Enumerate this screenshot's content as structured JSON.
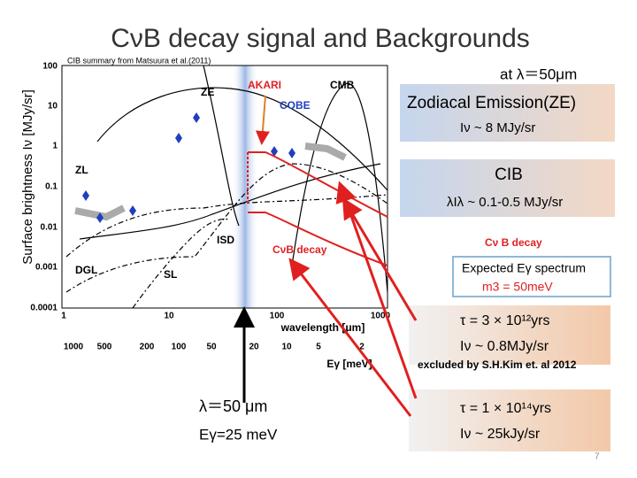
{
  "title": "CνB decay signal and Backgrounds",
  "plot": {
    "note": "CIB summary from Matsuura et al.(2011)",
    "y_label": "Surface brightness Iν [MJy/sr]",
    "y_ticks": [
      "100",
      "10",
      "1",
      "0.1",
      "0.01",
      "0.001",
      "0.0001"
    ],
    "x_ticks": [
      "1",
      "10",
      "100",
      "1000"
    ],
    "x2_ticks": [
      "1000",
      "500",
      "200",
      "100",
      "50",
      "20",
      "10",
      "5",
      "2"
    ],
    "x_label": "wavelength [μm]",
    "x2_label": "Eγ [meV]",
    "labels": [
      "ZE",
      "AKARI",
      "CMB",
      "COBE",
      "ZL",
      "ISD",
      "CνB decay",
      "DGL",
      "SL"
    ]
  },
  "annotation": {
    "wavelength": "λ＝50 μm",
    "energy": "Eγ=25 meV"
  },
  "panel": {
    "heading": "at λ＝50μm",
    "ze": {
      "title": "Zodiacal Emission(ZE)",
      "value": "Iν ~ 8 MJy/sr"
    },
    "cib": {
      "title": "CIB",
      "value": "λIλ ~ 0.1-0.5 MJy/sr"
    },
    "cnb": {
      "title": "Cν B decay",
      "spectrum": "Expected Eγ spectrum",
      "mass": "m3 = 50meV",
      "case1": {
        "tau": "τ = 3 × 10¹²yrs",
        "intensity": "Iν ~ 0.8MJy/sr",
        "note": "excluded by S.H.Kim et. al 2012"
      },
      "case2": {
        "tau": "τ = 1 × 10¹⁴yrs",
        "intensity": "Iν ~ 25kJy/sr"
      }
    }
  },
  "page_number": "7"
}
